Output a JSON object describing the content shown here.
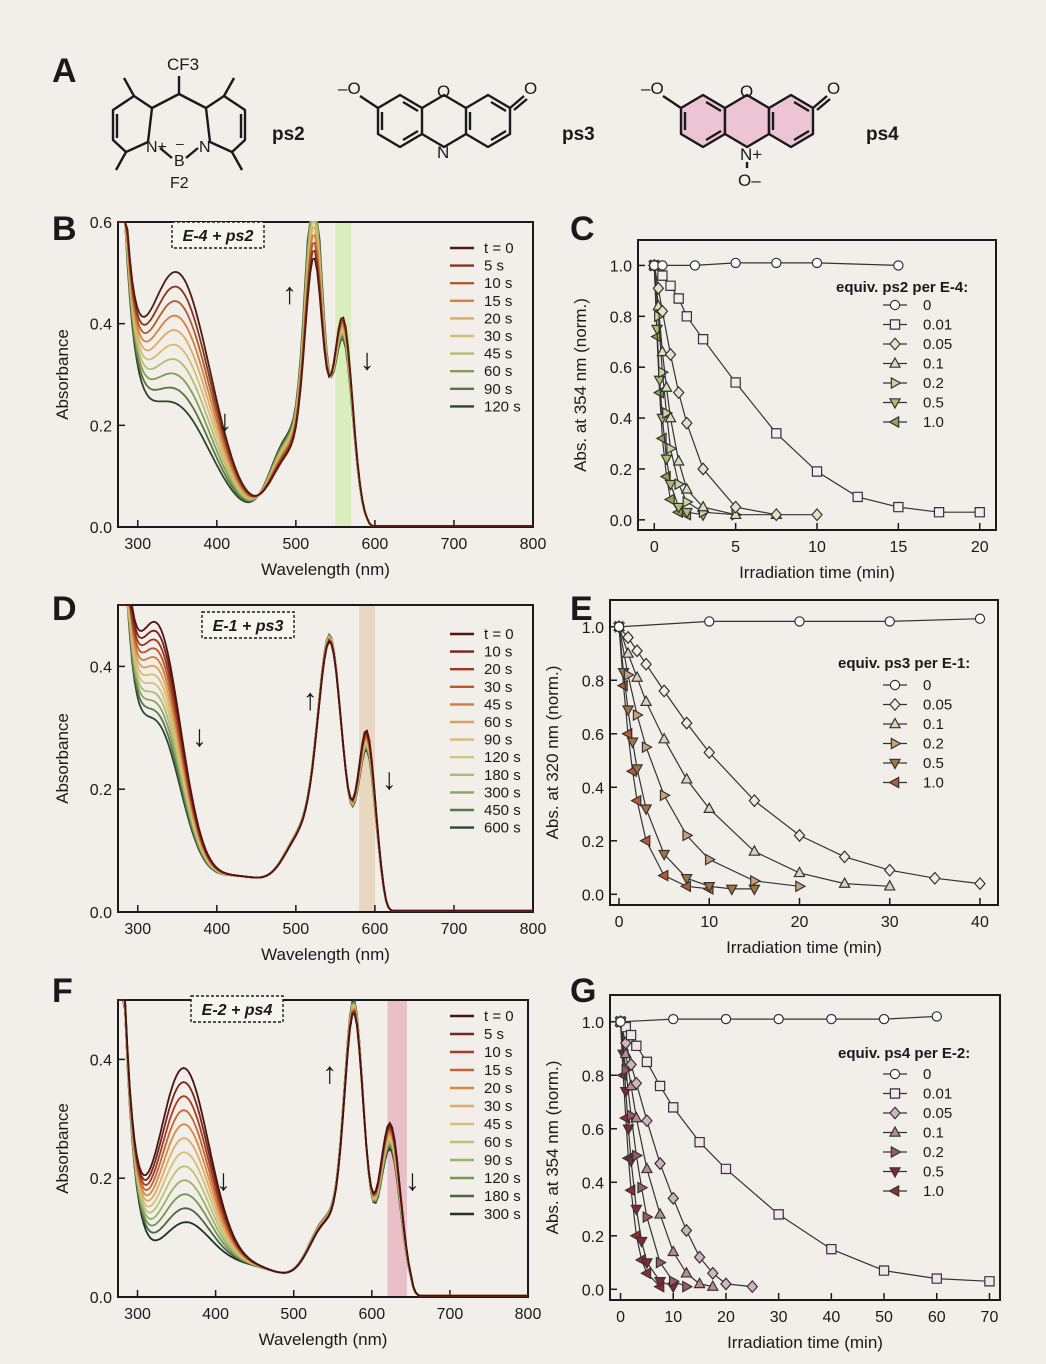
{
  "panels": {
    "A": "A",
    "B": "B",
    "C": "C",
    "D": "D",
    "E": "E",
    "F": "F",
    "G": "G"
  },
  "molecules": {
    "ps2": {
      "name": "ps2",
      "cf3": "CF3",
      "f2": "F2",
      "n1": "N+",
      "b": "B",
      "n2": "N",
      "bminus": "–"
    },
    "ps3": {
      "name": "ps3",
      "ominus": "–O",
      "o_ring": "O",
      "o_keto": "O",
      "n": "N"
    },
    "ps4": {
      "name": "ps4",
      "ominus": "–O",
      "o_ring": "O",
      "o_keto": "O",
      "nplus": "N+",
      "ominus2": "O–"
    }
  },
  "chart_data": [
    {
      "panel": "B",
      "type": "line",
      "tag": "E-4 + ps2",
      "xlabel": "Wavelength (nm)",
      "ylabel": "Absorbance",
      "xlim": [
        275,
        800
      ],
      "ylim": [
        0,
        0.6
      ],
      "xticks": [
        300,
        400,
        500,
        600,
        700,
        800
      ],
      "yticks": [
        0.0,
        0.2,
        0.4,
        0.6
      ],
      "highlight_band": [
        550,
        570
      ],
      "highlight_color": "#d6ecb4",
      "legend_title": "",
      "legend": [
        "t = 0",
        "5 s",
        "10 s",
        "15 s",
        "20 s",
        "30 s",
        "45 s",
        "60 s",
        "90 s",
        "120 s"
      ],
      "band": {
        "center": 352,
        "width": 40,
        "start": 0.37,
        "end": 0.11
      },
      "iso": {
        "x": 300,
        "y": 0.245
      },
      "peaks": [
        {
          "x": 523,
          "start": 0.39,
          "end": 0.53,
          "w": 11
        },
        {
          "x": 560,
          "start": 0.38,
          "end": 0.34,
          "w": 12
        }
      ],
      "cutoff": 590,
      "annotations": [
        {
          "t": "↓",
          "x": 410,
          "y": 0.19
        },
        {
          "t": "↑",
          "x": 492,
          "y": 0.44
        },
        {
          "t": "↓",
          "x": 590,
          "y": 0.31
        }
      ]
    },
    {
      "panel": "C",
      "type": "line",
      "xlabel": "Irradiation time (min)",
      "ylabel": "Abs. at 354 nm (norm.)",
      "xlim": [
        -1,
        21
      ],
      "ylim": [
        -0.04,
        1.1
      ],
      "xticks": [
        0,
        5,
        10,
        15,
        20
      ],
      "yticks": [
        0.0,
        0.2,
        0.4,
        0.6,
        0.8,
        1.0
      ],
      "legend_title": "equiv. ps2 per E-4:",
      "series": [
        {
          "name": "0",
          "marker": "circle",
          "color": "#ffffff",
          "x": [
            0,
            0.5,
            2.5,
            5,
            7.5,
            10,
            15
          ],
          "y": [
            1.0,
            1.0,
            1.0,
            1.01,
            1.01,
            1.01,
            1.0
          ]
        },
        {
          "name": "0.01",
          "marker": "square",
          "color": "#f3eeee",
          "x": [
            0,
            0.5,
            1,
            1.5,
            2,
            3,
            5,
            7.5,
            10,
            12.5,
            15,
            17.5,
            20
          ],
          "y": [
            1.0,
            0.96,
            0.92,
            0.87,
            0.8,
            0.71,
            0.54,
            0.34,
            0.19,
            0.09,
            0.05,
            0.03,
            0.03
          ]
        },
        {
          "name": "0.05",
          "marker": "diamond",
          "color": "#e6e2c6",
          "x": [
            0,
            0.25,
            0.5,
            1,
            1.5,
            2,
            3,
            5,
            7.5,
            10
          ],
          "y": [
            1.0,
            0.91,
            0.82,
            0.65,
            0.5,
            0.38,
            0.2,
            0.05,
            0.02,
            0.02
          ]
        },
        {
          "name": "0.1",
          "marker": "tri-up",
          "color": "#d8e0b8",
          "x": [
            0,
            0.25,
            0.5,
            0.75,
            1,
            1.5,
            2,
            3,
            5,
            7.5
          ],
          "y": [
            1.0,
            0.84,
            0.66,
            0.52,
            0.4,
            0.23,
            0.12,
            0.05,
            0.02,
            0.02
          ]
        },
        {
          "name": "0.2",
          "marker": "tri-right",
          "color": "#c6d69a",
          "x": [
            0,
            0.25,
            0.5,
            0.75,
            1,
            1.5,
            2,
            3,
            5
          ],
          "y": [
            1.0,
            0.8,
            0.58,
            0.42,
            0.28,
            0.14,
            0.07,
            0.03,
            0.02
          ]
        },
        {
          "name": "0.5",
          "marker": "tri-down",
          "color": "#a8c070",
          "x": [
            0,
            0.17,
            0.33,
            0.5,
            0.75,
            1,
            1.5,
            2,
            3
          ],
          "y": [
            1.0,
            0.75,
            0.55,
            0.4,
            0.24,
            0.14,
            0.05,
            0.03,
            0.02
          ]
        },
        {
          "name": "1.0",
          "marker": "tri-left",
          "color": "#8ca850",
          "x": [
            0,
            0.17,
            0.33,
            0.5,
            0.75,
            1,
            1.5,
            2
          ],
          "y": [
            1.0,
            0.72,
            0.5,
            0.32,
            0.17,
            0.08,
            0.03,
            0.02
          ]
        }
      ]
    },
    {
      "panel": "D",
      "type": "line",
      "tag": "E-1 + ps3",
      "xlabel": "Wavelength (nm)",
      "ylabel": "Absorbance",
      "xlim": [
        275,
        800
      ],
      "ylim": [
        0,
        0.5
      ],
      "xticks": [
        300,
        400,
        500,
        600,
        700,
        800
      ],
      "yticks": [
        0.0,
        0.2,
        0.4
      ],
      "highlight_band": [
        580,
        600
      ],
      "highlight_color": "#e8d2b8",
      "legend_title": "",
      "legend": [
        "t = 0",
        "10 s",
        "20 s",
        "30 s",
        "45 s",
        "60 s",
        "90 s",
        "120 s",
        "180 s",
        "300 s",
        "450 s",
        "600 s"
      ],
      "band": {
        "center": 325,
        "width": 30,
        "start": 0.43,
        "end": 0.27
      },
      "iso": {
        "x": 395,
        "y": 0.105
      },
      "peaks": [
        {
          "x": 543,
          "start": 0.34,
          "end": 0.357,
          "w": 15
        },
        {
          "x": 590,
          "start": 0.27,
          "end": 0.24,
          "w": 11
        }
      ],
      "cutoff": 610,
      "annotations": [
        {
          "t": "↓",
          "x": 378,
          "y": 0.27
        },
        {
          "t": "↑",
          "x": 518,
          "y": 0.33
        },
        {
          "t": "↓",
          "x": 618,
          "y": 0.2
        }
      ]
    },
    {
      "panel": "E",
      "type": "line",
      "xlabel": "Irradiation time (min)",
      "ylabel": "Abs. at 320 nm (norm.)",
      "xlim": [
        -1,
        42
      ],
      "ylim": [
        -0.04,
        1.1
      ],
      "xticks": [
        0,
        10,
        20,
        30,
        40
      ],
      "yticks": [
        0.0,
        0.2,
        0.4,
        0.6,
        0.8,
        1.0
      ],
      "legend_title": "equiv. ps3 per E-1:",
      "series": [
        {
          "name": "0",
          "marker": "circle",
          "color": "#ffffff",
          "x": [
            0,
            10,
            20,
            30,
            40
          ],
          "y": [
            1.0,
            1.02,
            1.02,
            1.02,
            1.03
          ]
        },
        {
          "name": "0.05",
          "marker": "diamond",
          "color": "#f1ece4",
          "x": [
            0,
            1,
            2,
            3,
            5,
            7.5,
            10,
            15,
            20,
            25,
            30,
            35,
            40
          ],
          "y": [
            1.0,
            0.96,
            0.91,
            0.86,
            0.76,
            0.64,
            0.53,
            0.35,
            0.22,
            0.14,
            0.09,
            0.06,
            0.04
          ]
        },
        {
          "name": "0.1",
          "marker": "tri-up",
          "color": "#e2d0b8",
          "x": [
            0,
            1,
            2,
            3,
            5,
            7.5,
            10,
            15,
            20,
            25,
            30
          ],
          "y": [
            1.0,
            0.9,
            0.81,
            0.72,
            0.58,
            0.43,
            0.32,
            0.16,
            0.08,
            0.04,
            0.03
          ]
        },
        {
          "name": "0.2",
          "marker": "tri-right",
          "color": "#c8a278",
          "x": [
            0,
            1,
            2,
            3,
            5,
            7.5,
            10,
            15,
            20
          ],
          "y": [
            1.0,
            0.82,
            0.67,
            0.55,
            0.37,
            0.22,
            0.13,
            0.05,
            0.03
          ]
        },
        {
          "name": "0.5",
          "marker": "tri-down",
          "color": "#a4743c",
          "x": [
            0,
            0.5,
            1,
            1.5,
            2,
            3,
            5,
            7.5,
            10,
            12.5,
            15
          ],
          "y": [
            1.0,
            0.83,
            0.69,
            0.57,
            0.47,
            0.32,
            0.15,
            0.06,
            0.03,
            0.02,
            0.02
          ]
        },
        {
          "name": "1.0",
          "marker": "tri-left",
          "color": "#b85a32",
          "x": [
            0,
            0.5,
            1,
            1.5,
            2,
            3,
            5,
            7.5,
            10
          ],
          "y": [
            1.0,
            0.78,
            0.6,
            0.46,
            0.35,
            0.2,
            0.07,
            0.03,
            0.02
          ]
        }
      ]
    },
    {
      "panel": "F",
      "type": "line",
      "tag": "E-2 + ps4",
      "xlabel": "Wavelength (nm)",
      "ylabel": "Absorbance",
      "xlim": [
        275,
        800
      ],
      "ylim": [
        0,
        0.5
      ],
      "xticks": [
        300,
        400,
        500,
        600,
        700,
        800
      ],
      "yticks": [
        0.0,
        0.2,
        0.4
      ],
      "highlight_band": [
        620,
        645
      ],
      "highlight_color": "#e8b6c4",
      "legend_title": "",
      "legend": [
        "t = 0",
        "5 s",
        "10 s",
        "15 s",
        "20 s",
        "30 s",
        "45 s",
        "60 s",
        "90 s",
        "120 s",
        "180 s",
        "300 s"
      ],
      "band": {
        "center": 358,
        "width": 33,
        "start": 0.36,
        "end": 0.1
      },
      "iso": {
        "x": 405,
        "y": 0.095
      },
      "peaks": [
        {
          "x": 577,
          "start": 0.38,
          "end": 0.41,
          "w": 12
        },
        {
          "x": 624,
          "start": 0.27,
          "end": 0.23,
          "w": 13
        }
      ],
      "cutoff": 650,
      "annotations": [
        {
          "t": "↓",
          "x": 410,
          "y": 0.18
        },
        {
          "t": "↑",
          "x": 546,
          "y": 0.36
        },
        {
          "t": "↓",
          "x": 652,
          "y": 0.18
        }
      ]
    },
    {
      "panel": "G",
      "type": "line",
      "xlabel": "Irradiation time (min)",
      "ylabel": "Abs. at 354 nm (norm.)",
      "xlim": [
        -2,
        72
      ],
      "ylim": [
        -0.04,
        1.1
      ],
      "xticks": [
        0,
        10,
        20,
        30,
        40,
        50,
        60,
        70
      ],
      "yticks": [
        0.0,
        0.2,
        0.4,
        0.6,
        0.8,
        1.0
      ],
      "legend_title": "equiv. ps4 per E-2:",
      "series": [
        {
          "name": "0",
          "marker": "circle",
          "color": "#ffffff",
          "x": [
            0,
            10,
            20,
            30,
            40,
            50,
            60
          ],
          "y": [
            1.0,
            1.01,
            1.01,
            1.01,
            1.01,
            1.01,
            1.02
          ]
        },
        {
          "name": "0.01",
          "marker": "square",
          "color": "#f2e6ea",
          "x": [
            0,
            1,
            2,
            3,
            5,
            7.5,
            10,
            15,
            20,
            30,
            40,
            50,
            60,
            70
          ],
          "y": [
            1.0,
            0.98,
            0.95,
            0.91,
            0.85,
            0.76,
            0.68,
            0.55,
            0.45,
            0.28,
            0.15,
            0.07,
            0.04,
            0.03
          ]
        },
        {
          "name": "0.05",
          "marker": "diamond",
          "color": "#d4b4bc",
          "x": [
            0,
            1,
            2,
            3,
            5,
            7.5,
            10,
            12.5,
            15,
            17.5,
            20,
            25
          ],
          "y": [
            1.0,
            0.92,
            0.84,
            0.77,
            0.63,
            0.47,
            0.34,
            0.22,
            0.12,
            0.06,
            0.02,
            0.01
          ]
        },
        {
          "name": "0.1",
          "marker": "tri-up",
          "color": "#b88a94",
          "x": [
            0,
            1,
            2,
            3,
            5,
            7.5,
            10,
            12.5,
            15,
            17.5
          ],
          "y": [
            1.0,
            0.88,
            0.76,
            0.64,
            0.45,
            0.28,
            0.14,
            0.06,
            0.02,
            0.01
          ]
        },
        {
          "name": "0.2",
          "marker": "tri-right",
          "color": "#9a5a6a",
          "x": [
            0,
            1,
            2,
            3,
            4,
            5,
            7.5,
            10,
            12.5
          ],
          "y": [
            1.0,
            0.82,
            0.65,
            0.5,
            0.38,
            0.27,
            0.1,
            0.03,
            0.01
          ]
        },
        {
          "name": "0.5",
          "marker": "tri-down",
          "color": "#82263c",
          "x": [
            0,
            0.5,
            1,
            1.5,
            2,
            3,
            4,
            5,
            7.5,
            10
          ],
          "y": [
            1.0,
            0.88,
            0.74,
            0.6,
            0.48,
            0.3,
            0.18,
            0.1,
            0.03,
            0.01
          ]
        },
        {
          "name": "1.0",
          "marker": "tri-left",
          "color": "#9c2a2a",
          "x": [
            0,
            0.5,
            1,
            1.5,
            2,
            3,
            4,
            5,
            7.5
          ],
          "y": [
            1.0,
            0.8,
            0.64,
            0.49,
            0.37,
            0.2,
            0.11,
            0.06,
            0.01
          ]
        }
      ]
    }
  ]
}
